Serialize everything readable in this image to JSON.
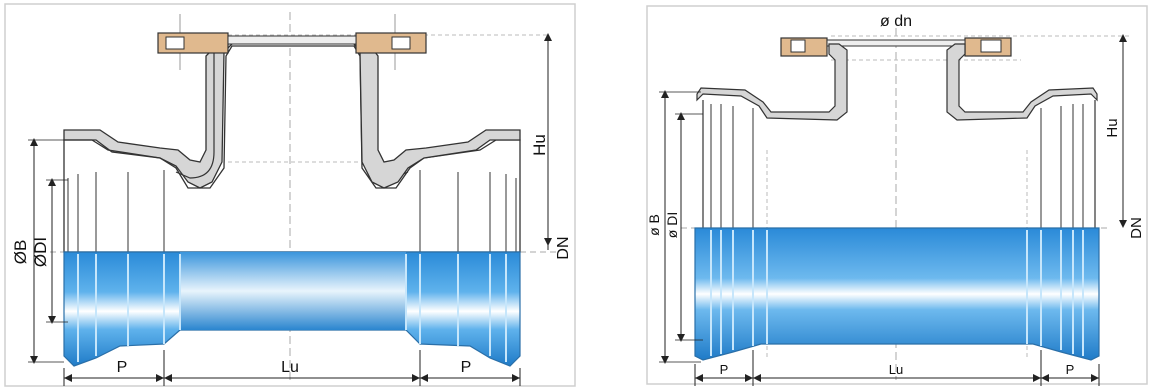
{
  "left_diagram": {
    "labels": {
      "diameter_b": "ØB",
      "diameter_di": "ØDI",
      "height_hu": "Hu",
      "nominal_dn": "DN",
      "socket_left": "P",
      "length_lu": "Lu",
      "socket_right": "P"
    }
  },
  "right_diagram": {
    "labels": {
      "branch_dn": "ø dn",
      "diameter_b": "ø B",
      "diameter_di": "ø DI",
      "height_hu": "Hu",
      "nominal_dn": "DN",
      "socket_left": "P",
      "length_lu": "Lu",
      "socket_right": "P"
    }
  },
  "colors": {
    "pipe_blue": "#2f8fd6",
    "pipe_highlight": "#ffffff",
    "flange_tan": "#e0b98e",
    "cast_gray": "#d6d6d6",
    "outline": "#333333"
  }
}
